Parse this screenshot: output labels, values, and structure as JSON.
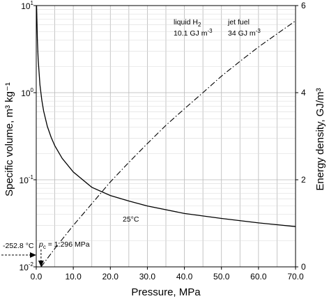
{
  "chart_data": {
    "type": "line",
    "xlabel": "Pressure, MPa",
    "ylabel_left": "Specific volume, m³ kg⁻¹",
    "ylabel_right": "Energy density, GJ/m³",
    "xlim": [
      0,
      70
    ],
    "ylim_left": [
      0.01,
      10
    ],
    "ylim_right": [
      0,
      6
    ],
    "left_scale": "log",
    "grid": true,
    "x_ticks": [
      "0.0",
      "10.0",
      "20.0",
      "30.0",
      "40.0",
      "50.0",
      "60.0",
      "70.0"
    ],
    "x_tick_values": [
      0,
      10,
      20,
      30,
      40,
      50,
      60,
      70
    ],
    "left_ticks": [
      {
        "value": 0.01,
        "base": "10",
        "exp": "-2"
      },
      {
        "value": 0.1,
        "base": "10",
        "exp": "-1"
      },
      {
        "value": 1,
        "base": "10",
        "exp": "0"
      },
      {
        "value": 10,
        "base": "10",
        "exp": "1"
      }
    ],
    "right_ticks": [
      "0",
      "2",
      "4",
      "6"
    ],
    "right_tick_values": [
      0,
      2,
      4,
      6
    ],
    "series": [
      {
        "label": "25°C",
        "axis": "left",
        "style": "solid",
        "x": [
          0.1,
          0.2,
          0.3,
          0.5,
          1,
          1.5,
          2,
          3,
          4,
          5,
          7,
          10,
          15,
          20,
          25,
          30,
          40,
          50,
          60,
          70
        ],
        "y": [
          10,
          6.2,
          4.1,
          2.46,
          1.23,
          0.82,
          0.615,
          0.41,
          0.308,
          0.246,
          0.176,
          0.123,
          0.082,
          0.066,
          0.057,
          0.05,
          0.041,
          0.036,
          0.032,
          0.029
        ]
      },
      {
        "axis": "right",
        "style": "dash-dot",
        "x": [
          1.296,
          5,
          10,
          15,
          20,
          25,
          30,
          35,
          40,
          45,
          50,
          55,
          60,
          65,
          70
        ],
        "y": [
          0,
          0.42,
          0.95,
          1.45,
          1.95,
          2.4,
          2.83,
          3.25,
          3.63,
          4.0,
          4.38,
          4.72,
          5.05,
          5.35,
          5.65
        ]
      }
    ],
    "annotations": {
      "series_label": "25°C",
      "pc_symbol": "p",
      "pc_subscript": "c",
      "pc_value": " = 1.296 MPa",
      "pc_pressure": 1.296,
      "temp_marker": "-252.8 °C",
      "liquid_h2_name": "liquid H",
      "liquid_h2_sub": "2",
      "liquid_h2_value": "10.1 GJ m",
      "liquid_h2_exp": "-3",
      "jet_fuel_name": "jet fuel",
      "jet_fuel_value": "34 GJ m",
      "jet_fuel_exp": "-3"
    }
  }
}
